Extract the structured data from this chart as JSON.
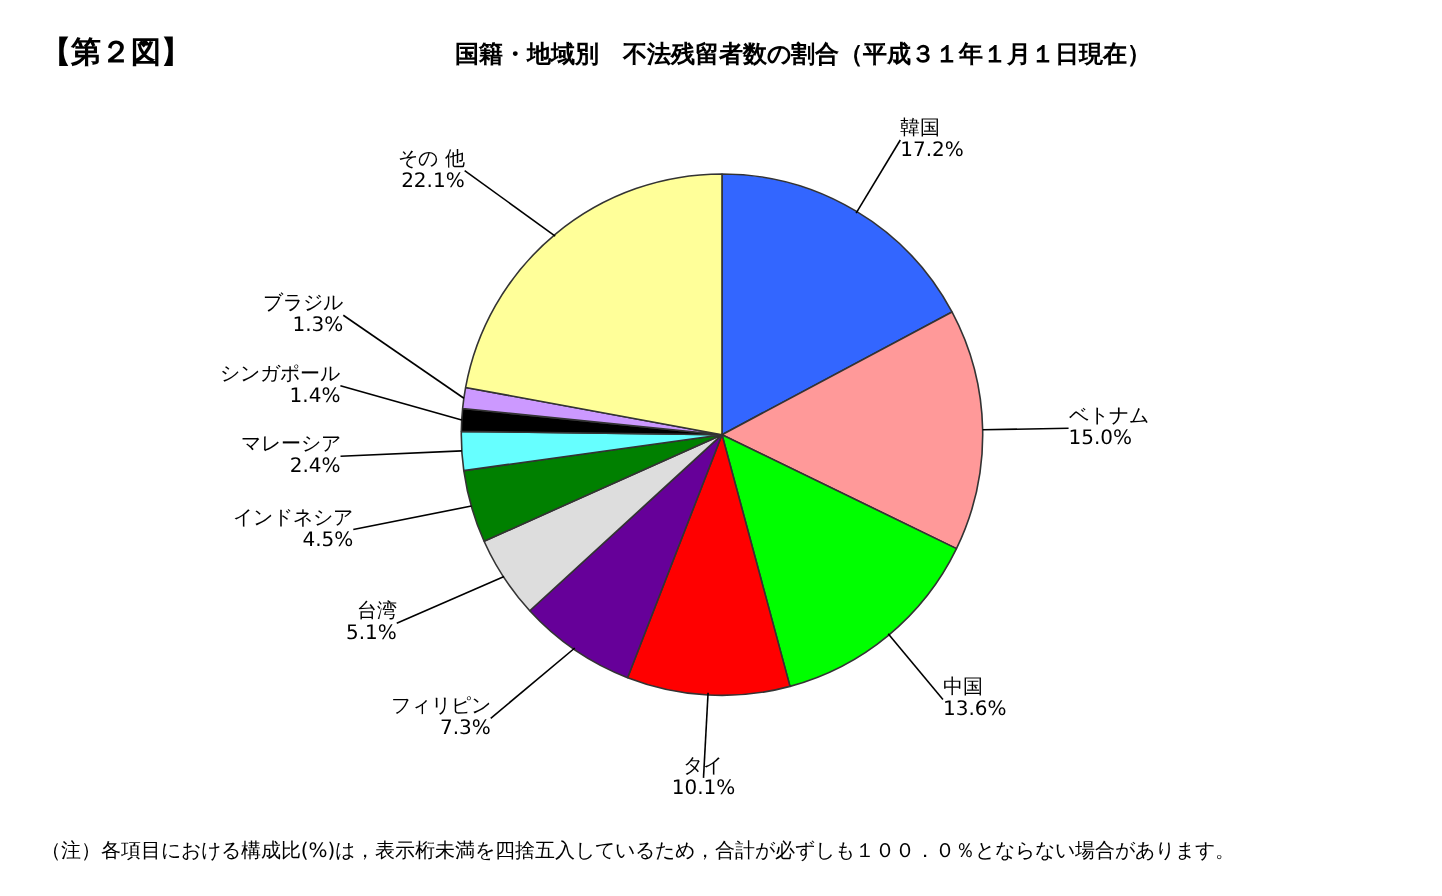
{
  "chart_data": {
    "type": "pie",
    "title": "【第２図】",
    "subtitle": "国籍・地域別　不法残留者数の割合（平成３１年１月１日現在）",
    "categories": [
      "韓国",
      "ベトナム",
      "中国",
      "タイ",
      "フィリピン",
      "台湾",
      "インドネシア",
      "マレーシア",
      "シンガポール",
      "ブラジル",
      "その 他"
    ],
    "values": [
      17.2,
      15.0,
      13.6,
      10.1,
      7.3,
      5.1,
      4.5,
      2.4,
      1.4,
      1.3,
      22.1
    ],
    "value_labels": [
      "17.2%",
      "15.0%",
      "13.6%",
      "10.1%",
      "7.3%",
      "5.1%",
      "4.5%",
      "2.4%",
      "1.4%",
      "1.3%",
      "22.1%"
    ],
    "colors": [
      "#3366ff",
      "#ff9999",
      "#00ff00",
      "#ff0000",
      "#660099",
      "#dddddd",
      "#008000",
      "#66ffff",
      "#000000",
      "#cc99ff",
      "#ffff99"
    ],
    "annotations": [
      "（注）各項目における構成比(%)は，表示桁未満を四捨五入しているため，合計が必ずしも１００．０％とならない場合があります。"
    ]
  }
}
